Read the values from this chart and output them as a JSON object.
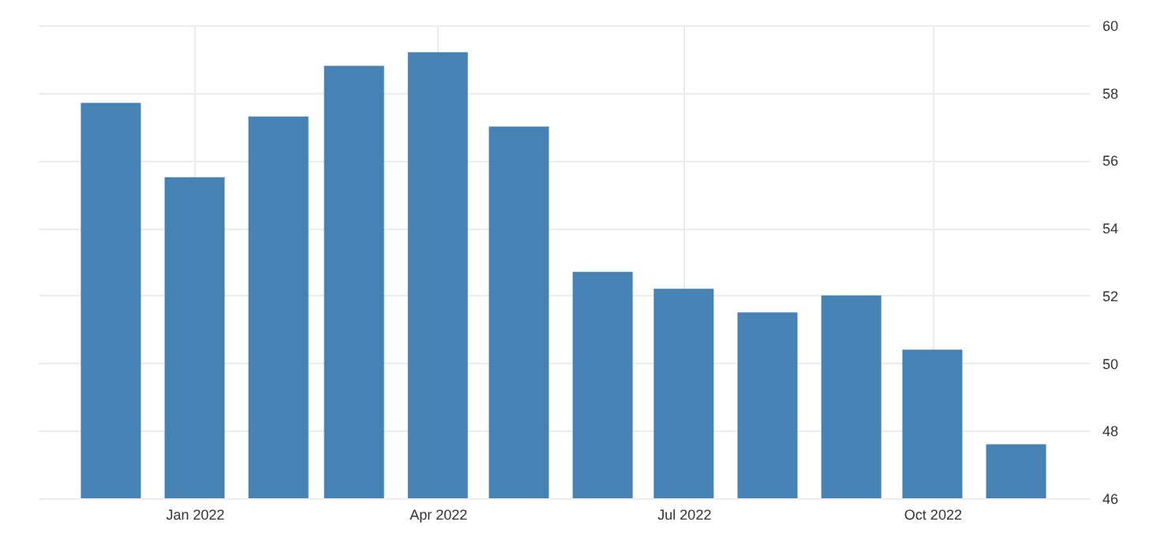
{
  "chart_data": {
    "type": "bar",
    "x": [
      "2021-12",
      "2022-01",
      "2022-02",
      "2022-03",
      "2022-04",
      "2022-05",
      "2022-06",
      "2022-07",
      "2022-08",
      "2022-09",
      "2022-10",
      "2022-11"
    ],
    "values": [
      57.7,
      55.5,
      57.3,
      58.8,
      59.2,
      57.0,
      52.7,
      52.2,
      51.5,
      52.0,
      50.4,
      47.6
    ],
    "color": "#4682b4",
    "xlim": [
      "2021-11-04",
      "2022-11-28"
    ],
    "xticks": [
      {
        "value": "2022-01",
        "label": "Jan 2022"
      },
      {
        "value": "2022-04",
        "label": "Apr 2022"
      },
      {
        "value": "2022-07",
        "label": "Jul 2022"
      },
      {
        "value": "2022-10",
        "label": "Oct 2022"
      }
    ],
    "ylim": [
      46,
      60
    ],
    "yticks": [
      46,
      48,
      50,
      52,
      54,
      56,
      58,
      60
    ],
    "grid": true
  }
}
